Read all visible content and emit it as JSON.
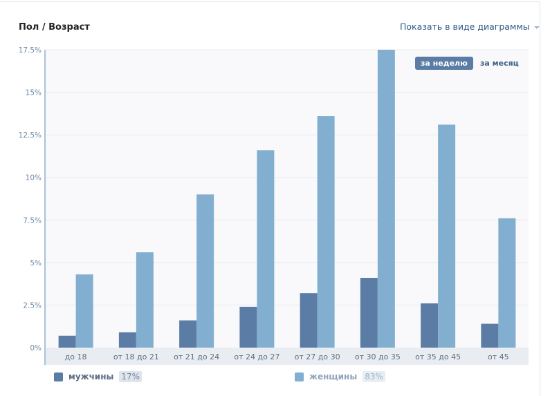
{
  "header": {
    "title": "Пол / Возраст",
    "view_toggle": "Показать в виде диаграммы"
  },
  "period_buttons": [
    {
      "label": "за неделю",
      "active": true
    },
    {
      "label": "за месяц",
      "active": false
    }
  ],
  "legend": [
    {
      "name": "мужчины",
      "share": "17%",
      "color": "#5b7ca4"
    },
    {
      "name": "женщины",
      "share": "83%",
      "color": "#82aed0"
    }
  ],
  "chart_data": {
    "type": "bar",
    "categories": [
      "до 18",
      "от 18 до 21",
      "от 21 до 24",
      "от 24 до 27",
      "от 27 до 30",
      "от 30 до 35",
      "от 35 до 45",
      "от 45"
    ],
    "series": [
      {
        "name": "мужчины",
        "values": [
          0.7,
          0.9,
          1.6,
          2.4,
          3.2,
          4.1,
          2.6,
          1.4
        ]
      },
      {
        "name": "женщины",
        "values": [
          4.3,
          5.6,
          9.0,
          11.6,
          13.6,
          17.5,
          13.1,
          7.6
        ]
      }
    ],
    "yticks": [
      "0%",
      "2.5%",
      "5%",
      "7.5%",
      "10%",
      "12.5%",
      "15%",
      "17.5%"
    ],
    "ylim": [
      0,
      17.5
    ],
    "grid": true
  }
}
